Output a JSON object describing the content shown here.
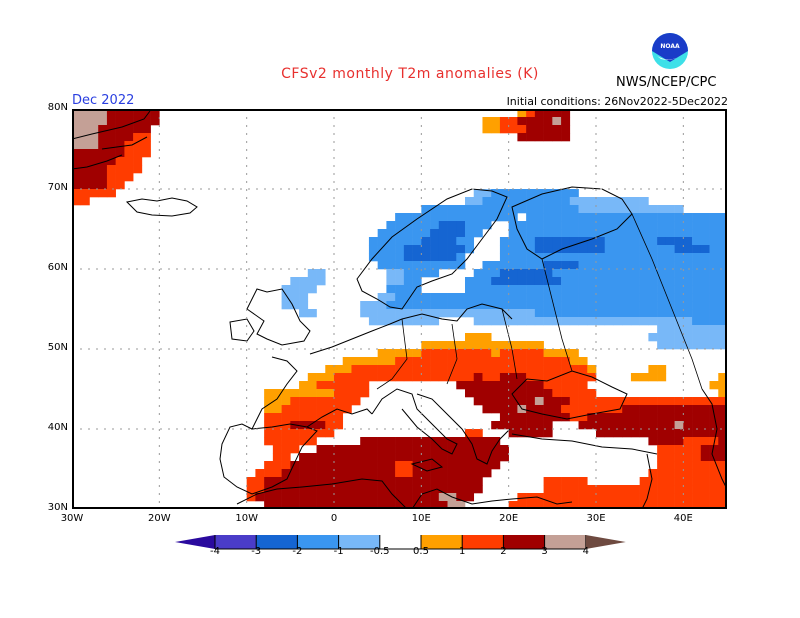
{
  "header": {
    "title": "CFSv2 monthly T2m anomalies (K)",
    "organization": "NWS/NCEP/CPC",
    "logo_text": "NOAA",
    "month": "Dec 2022",
    "initial_conditions": "Initial conditions: 26Nov2022-5Dec2022"
  },
  "axes": {
    "lat_labels": [
      "80N",
      "70N",
      "60N",
      "50N",
      "40N",
      "30N"
    ],
    "lon_labels": [
      "30W",
      "20W",
      "10W",
      "0",
      "10E",
      "20E",
      "30E",
      "40E"
    ],
    "lat_range": [
      30,
      80
    ],
    "lon_range": [
      -30,
      45
    ]
  },
  "colorbar": {
    "ticks": [
      "-4",
      "-3",
      "-2",
      "-1",
      "-0.5",
      "0.5",
      "1",
      "2",
      "3",
      "4"
    ],
    "colors": {
      "lt_-4": "#2a0a9e",
      "-4_-3": "#4a3cc8",
      "-3_-2": "#1565d2",
      "-2_-1": "#3a96f0",
      "-1_-0.5": "#78b8f8",
      "neutral": "#ffffff",
      "0.5_1": "#ffa000",
      "1_2": "#ff3c00",
      "2_3": "#a00000",
      "3_4": "#c4a096",
      "gt_4": "#6e4a40"
    }
  },
  "chart_data": {
    "type": "heatmap",
    "title": "CFSv2 monthly T2m anomalies (K)",
    "variable": "T2m anomaly (K)",
    "levels": [
      -4,
      -3,
      -2,
      -1,
      -0.5,
      0.5,
      1,
      2,
      3,
      4
    ],
    "cell_deg": 1,
    "legend_codes": {
      "a": "-1_-0.5",
      "b": "-2_-1",
      "c": "-3_-2",
      "o": "0.5_1",
      "r": "1_2",
      "d": "2_3",
      "p": "3_4",
      ".": "neutral"
    },
    "rows_from_lat": 80,
    "rows_from_lon": -30,
    "rows": [
      "ppppdddddd.........................................ordddd.......................",
      "ppppdddddd.....................................oorrddddpd.......................",
      "pppdddddd......................................oorrrddddd......................",
      "pppddddrr..........................................dddddd.......................",
      "pppdddrrr.......................................................................",
      "ddddddrrr.......................................................................",
      "dddddrrr........................................................................",
      "ddddrrrr........................................................................",
      "ddddrrr.........................................................................",
      "ddddrr..........................................................................",
      "rrrrr.........................................aabbbbbbbbbb.....................",
      "rr...........................................aabbbbbbbbbbaaaaaaaaa.............",
      "........................................bbbbbbbbbbbbbbbbbbaaaaaaaaaaaa...........",
      ".....................................bbbbbbbbbbbbbb.bbbbbbbbbbbbbbbbbbbbbbbbbbb...",
      "....................................bbbbbbcccbbb..bbbbbbbbbbbbbbbbbbbbbbbbbbbbb...",
      "...................................bbbbbbccccbb...bbbbbbbbbbbbbbbbbbbbbbbbbbbbb..",
      "..................................bbbbbbccccbb...bbbbccccccccbbbbbbccccbbbbbbbbbbbb",
      "..................................bbbbcccccccb...bbbbccccccccbbbbbbbbccccbbbbbbbb",
      "..................................bbbbccccccb....bbbbbbbbbbbbbbbbbbbbbbbbbbbbbbcc",
      "...................................bbbbbbbbbb..bbbbbbbccccbbbbbbbbbbbbbbbbbbbbbcc",
      "...........................aa.......aabbbb....bbbccccccbbbbbbbbbbbbbbbbbbbbbbbbcc",
      ".........................aaaa.......aabb.....bbbccccccccbbbbbbbbbbbbbbbbbbbbbbbbb",
      "........................aaaa........bbbb.....bbbbbbbbbbbbbbbbbbbbbbbbbbbbbbbbbbbb",
      "........................aaa........aabbbbbbbbbbbbbbbbbbbbbbbbbbbbbbbbbbbbbbbbbbbb",
      "........................aaa......aaabbbbbbbbbbbbbbbbbbbbbbbbbbbbbbbbbbbbbbbbbbbba",
      "..........................aa.....aaaaaaaaaaaaaaaaaaaabbbbbbbbbbbbbbbbbbbbbbbbbbaa",
      "..................................aaaaaaaa....aaaaaaaaaaaaaaaaaaaaaaaaabbbbbbbaaaa",
      "...................................................................aaaaaaaaaaaaaa",
      ".............................................ooo..................aaaaaaaaaaaa...",
      "........................................oooooooooooooo.............aaaaaaaaaaa...",
      "...................................ooooorrrrrrrrorrrrroooo..................aaaa..",
      "...............................oooooorrrrrrrrrrrrrrrrrrrroo....................",
      ".............................ooorrrrrrrrrrrrrrrrrrrrrrrrrrro......oo..............",
      "...........................ooorrrrrrrrrrrrrrrrdrrdddrrrrrrrr....oooo......ooooooo",
      "..........................oorrrrrr..........ddddddddddrrrrr..............ooooorrr",
      "......................oooooooorrrr...........ddddddddddrrrrr..............orrrrrrr",
      "......................ooorrrrrrrr.............dddddddpdddrrrrrrrrrrrrrrrrrrrrrrrrr",
      "......................oorrrrrrrr...............ddddpddddrrrrrrrdddddddddddddddddddr",
      "......................rrrrrrrrr..................ddddddddrrddddddddddddddddddddddd",
      "......................rrrddddrr.................ddddddd...dddddddddddpdddddddpddd",
      "......................rrrrrrrr...............rr...ddddd.....ddddddddddddddddddddd",
      "......................rrrrrr.....dddddddddddddddd.................ddddrrrrdddrrrrrr",
      ".......................rrr..dddddddddddddddddddddd.................rrrrrddddrrrrrr",
      ".......................rr.dddddddddddddddddddddddd.................rrrrrddddrrrrrr",
      "......................rrrddddddddddddrrdddddddddd..................rrrrrrrrrrrrdrr",
      ".....................rrrdddddddddddddrrddddddddd..................rrrrrrrrrrrrrrrr",
      "....................rrddddddddddddddddddddddddd.......rrrrr......rrrrrrrrrrrrrrrr",
      "....................rrddddddddddddddddddddddddd.......rrrrrrrrrrrrrrrrrrrrrrrrrrr",
      "....................rdddddddddddddddddddddppdd.....rrrrrrrrrrrrrrrrrrrrrrrrrrrrrr",
      "......................dddddddddddddddddddddpp.....rrrrrrrrrrrrrrrrrrrrrrrrrrrrrrr"
    ]
  }
}
